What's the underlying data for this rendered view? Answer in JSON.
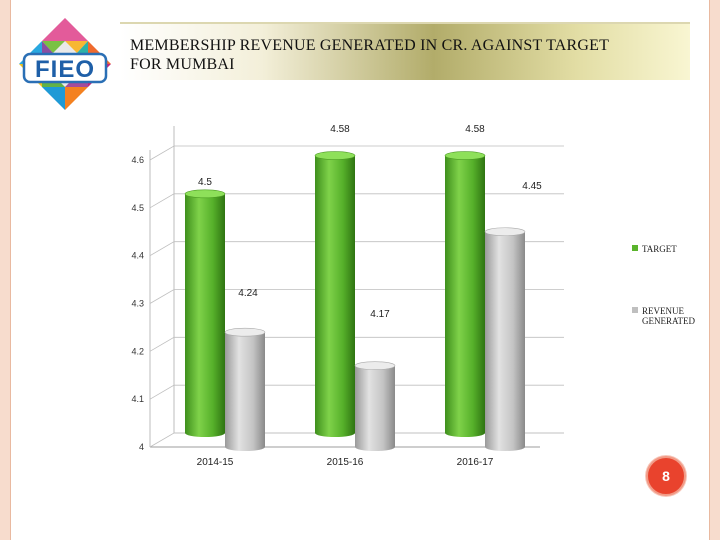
{
  "slide": {
    "title_line1": "MEMBERSHIP REVENUE GENERATED  IN CR. AGAINST TARGET",
    "title_line2": "FOR  MUMBAI",
    "page_number": "8",
    "logo_text": "FIEO"
  },
  "colors": {
    "target": "#5ab42c",
    "revenue": "#bfbfbf",
    "badge": "#e9432d"
  },
  "chart_data": {
    "type": "bar",
    "categories": [
      "2014-15",
      "2015-16",
      "2016-17"
    ],
    "series": [
      {
        "name": "TARGET",
        "values": [
          4.5,
          4.58,
          4.58
        ],
        "labels": [
          "4.5",
          "4.58",
          "4.58"
        ]
      },
      {
        "name": "REVENUE GENERATED",
        "values": [
          4.24,
          4.17,
          4.45
        ],
        "labels": [
          "4.24",
          "4.17",
          "4.45"
        ]
      }
    ],
    "y_ticks": [
      "4",
      "4.1",
      "4.2",
      "4.3",
      "4.4",
      "4.5",
      "4.6"
    ],
    "ylim": [
      4,
      4.6
    ],
    "grid": true,
    "legend_position": "right"
  }
}
